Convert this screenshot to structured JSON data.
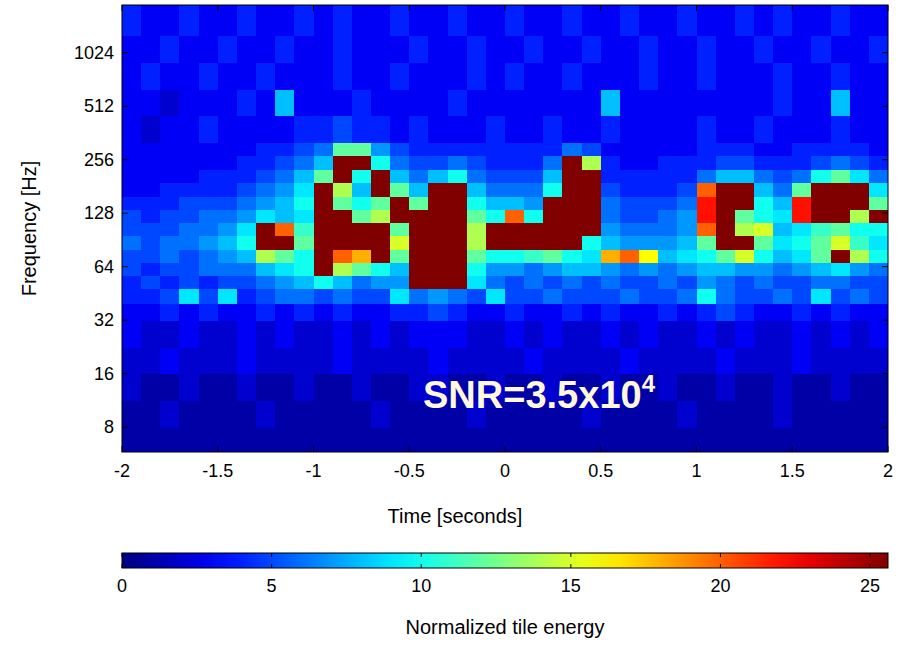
{
  "chart_data": {
    "type": "heatmap",
    "x_label": "Time [seconds]",
    "y_label": "Frequency [Hz]",
    "log": "y",
    "xlim": [
      -2,
      2
    ],
    "xticks": [
      -2,
      -1.5,
      -1,
      -0.5,
      0,
      0.5,
      1,
      1.5,
      2
    ],
    "ylim": [
      5.8,
      1900
    ],
    "yticks": [
      8,
      16,
      32,
      64,
      128,
      256,
      512,
      1024
    ],
    "annotations": [
      {
        "text": "SNR=3.5x10",
        "superscript": "4"
      }
    ],
    "colorbar": {
      "label": "Normalized tile energy",
      "range": [
        0,
        25.6
      ],
      "ticks": [
        0,
        5,
        10,
        15,
        20,
        25
      ]
    },
    "x_bins": [
      -2,
      -1.9,
      -1.8,
      -1.7,
      -1.6,
      -1.5,
      -1.4,
      -1.3,
      -1.2,
      -1.1,
      -1,
      -0.9,
      -0.8,
      -0.7,
      -0.6,
      -0.5,
      -0.4,
      -0.3,
      -0.2,
      -0.1,
      0,
      0.1,
      0.2,
      0.3,
      0.4,
      0.5,
      0.6,
      0.7,
      0.8,
      0.9,
      1,
      1.1,
      1.2,
      1.3,
      1.4,
      1.5,
      1.6,
      1.7,
      1.8,
      1.9,
      2
    ],
    "y_bins": [
      5.8,
      8,
      11.3,
      16,
      22.6,
      32,
      40,
      48,
      57,
      68,
      80,
      96,
      114,
      135,
      160,
      190,
      226,
      269,
      320,
      452,
      640,
      905,
      1280,
      1900
    ],
    "cells": [
      [
        1,
        1,
        1,
        1,
        1,
        1,
        1,
        1,
        1,
        1,
        1,
        1,
        1,
        1,
        1,
        1,
        1,
        1,
        1,
        1,
        1,
        1,
        1,
        1,
        1,
        1,
        1,
        1,
        1,
        1,
        1,
        1,
        1,
        1,
        1,
        1,
        1,
        1,
        1,
        1
      ],
      [
        1,
        1,
        2,
        1,
        1,
        1,
        1,
        2,
        1,
        1,
        1,
        1,
        1,
        2,
        1,
        1,
        1,
        1,
        2,
        1,
        1,
        1,
        1,
        1,
        2,
        1,
        1,
        1,
        1,
        2,
        1,
        1,
        1,
        1,
        2,
        1,
        1,
        1,
        1,
        1
      ],
      [
        2,
        1,
        1,
        2,
        1,
        1,
        2,
        1,
        1,
        2,
        1,
        1,
        2,
        1,
        1,
        2,
        2,
        1,
        1,
        2,
        1,
        1,
        2,
        1,
        1,
        2,
        1,
        1,
        2,
        1,
        1,
        2,
        1,
        1,
        2,
        1,
        1,
        2,
        1,
        1
      ],
      [
        2,
        2,
        3,
        2,
        2,
        2,
        3,
        2,
        2,
        2,
        2,
        3,
        2,
        2,
        2,
        2,
        3,
        2,
        2,
        2,
        2,
        3,
        2,
        2,
        2,
        2,
        3,
        2,
        2,
        2,
        2,
        3,
        2,
        2,
        2,
        3,
        2,
        2,
        2,
        2
      ],
      [
        3,
        2,
        2,
        3,
        2,
        2,
        3,
        2,
        3,
        2,
        2,
        3,
        2,
        3,
        2,
        3,
        3,
        3,
        2,
        2,
        3,
        2,
        3,
        2,
        2,
        3,
        2,
        3,
        2,
        2,
        3,
        2,
        3,
        2,
        2,
        3,
        2,
        3,
        2,
        3
      ],
      [
        3,
        3,
        4,
        3,
        4,
        3,
        3,
        4,
        3,
        4,
        3,
        4,
        3,
        3,
        4,
        4,
        5,
        4,
        3,
        3,
        4,
        3,
        3,
        4,
        3,
        4,
        3,
        3,
        4,
        3,
        4,
        5,
        4,
        3,
        3,
        4,
        3,
        4,
        3,
        3
      ],
      [
        4,
        4,
        5,
        9,
        5,
        9,
        4,
        5,
        6,
        6,
        5,
        6,
        5,
        5,
        9,
        6,
        7,
        6,
        5,
        9,
        5,
        5,
        6,
        5,
        5,
        5,
        6,
        5,
        5,
        6,
        10,
        6,
        5,
        5,
        6,
        5,
        9,
        5,
        6,
        5
      ],
      [
        4,
        5,
        4,
        5,
        4,
        5,
        5,
        6,
        7,
        8,
        10,
        8,
        6,
        7,
        7,
        28,
        30,
        30,
        9,
        6,
        5,
        6,
        5,
        6,
        5,
        6,
        5,
        5,
        6,
        5,
        7,
        6,
        5,
        6,
        5,
        5,
        6,
        6,
        5,
        5
      ],
      [
        5,
        4,
        5,
        5,
        6,
        6,
        6,
        8,
        9,
        10,
        28,
        14,
        12,
        10,
        8,
        30,
        30,
        30,
        10,
        7,
        7,
        6,
        7,
        8,
        8,
        7,
        6,
        7,
        6,
        7,
        8,
        8,
        7,
        7,
        6,
        7,
        8,
        9,
        7,
        6
      ],
      [
        5,
        5,
        6,
        5,
        6,
        7,
        8,
        14,
        12,
        10,
        28,
        20,
        18,
        28,
        12,
        30,
        30,
        30,
        12,
        10,
        10,
        11,
        12,
        10,
        9,
        18,
        20,
        16,
        8,
        9,
        10,
        12,
        15,
        10,
        8,
        9,
        12,
        26,
        14,
        10
      ],
      [
        6,
        5,
        6,
        6,
        7,
        8,
        10,
        28,
        26,
        12,
        30,
        28,
        28,
        28,
        15,
        30,
        30,
        30,
        14,
        28,
        28,
        28,
        28,
        28,
        10,
        8,
        7,
        7,
        7,
        8,
        12,
        28,
        28,
        12,
        9,
        10,
        12,
        15,
        11,
        9
      ],
      [
        5,
        5,
        5,
        6,
        6,
        7,
        9,
        26,
        20,
        11,
        30,
        26,
        28,
        28,
        12,
        30,
        30,
        30,
        14,
        28,
        26,
        28,
        28,
        30,
        28,
        7,
        6,
        6,
        6,
        7,
        20,
        28,
        14,
        15,
        8,
        9,
        11,
        12,
        10,
        10
      ],
      [
        5,
        4,
        5,
        5,
        6,
        6,
        7,
        9,
        8,
        9,
        30,
        28,
        12,
        14,
        28,
        28,
        30,
        30,
        12,
        10,
        20,
        10,
        28,
        30,
        28,
        6,
        5,
        5,
        6,
        7,
        22,
        28,
        12,
        10,
        9,
        22,
        28,
        28,
        14,
        28
      ],
      [
        4,
        4,
        4,
        5,
        5,
        5,
        6,
        7,
        8,
        10,
        28,
        12,
        10,
        12,
        28,
        12,
        30,
        30,
        10,
        8,
        8,
        7,
        28,
        30,
        30,
        6,
        5,
        5,
        5,
        6,
        22,
        28,
        28,
        10,
        8,
        22,
        28,
        28,
        28,
        12
      ],
      [
        3,
        3,
        4,
        4,
        4,
        4,
        5,
        6,
        7,
        9,
        28,
        14,
        8,
        28,
        12,
        8,
        28,
        28,
        8,
        6,
        6,
        6,
        10,
        30,
        30,
        5,
        4,
        4,
        4,
        5,
        20,
        28,
        28,
        8,
        6,
        12,
        28,
        28,
        26,
        9
      ],
      [
        3,
        3,
        3,
        3,
        4,
        4,
        4,
        5,
        6,
        8,
        12,
        28,
        10,
        28,
        8,
        6,
        8,
        10,
        6,
        5,
        5,
        5,
        8,
        30,
        28,
        4,
        4,
        4,
        4,
        4,
        6,
        8,
        8,
        6,
        5,
        6,
        10,
        12,
        9,
        6
      ],
      [
        3,
        3,
        3,
        3,
        3,
        3,
        4,
        4,
        5,
        6,
        8,
        28,
        28,
        10,
        6,
        5,
        5,
        6,
        5,
        4,
        4,
        4,
        6,
        28,
        14,
        4,
        3,
        3,
        4,
        4,
        4,
        5,
        5,
        4,
        4,
        4,
        5,
        6,
        5,
        4
      ],
      [
        3,
        3,
        3,
        3,
        3,
        3,
        3,
        4,
        4,
        5,
        6,
        12,
        12,
        7,
        5,
        4,
        4,
        4,
        4,
        4,
        4,
        4,
        4,
        6,
        5,
        3,
        3,
        3,
        3,
        3,
        4,
        4,
        4,
        3,
        3,
        4,
        4,
        4,
        4,
        3
      ],
      [
        3,
        2,
        3,
        3,
        4,
        3,
        3,
        3,
        3,
        4,
        4,
        5,
        4,
        4,
        3,
        4,
        3,
        3,
        3,
        4,
        3,
        3,
        4,
        3,
        3,
        4,
        3,
        3,
        3,
        3,
        4,
        3,
        3,
        4,
        3,
        3,
        3,
        4,
        3,
        3
      ],
      [
        3,
        3,
        2,
        3,
        3,
        3,
        4,
        3,
        8,
        3,
        3,
        3,
        4,
        3,
        3,
        3,
        3,
        4,
        3,
        3,
        3,
        3,
        3,
        3,
        3,
        8,
        3,
        3,
        3,
        3,
        3,
        3,
        3,
        3,
        4,
        3,
        3,
        8,
        3,
        3
      ],
      [
        3,
        4,
        3,
        3,
        4,
        3,
        3,
        4,
        3,
        3,
        3,
        4,
        3,
        3,
        4,
        3,
        3,
        3,
        4,
        3,
        4,
        3,
        3,
        4,
        3,
        3,
        3,
        4,
        3,
        3,
        4,
        3,
        3,
        3,
        4,
        3,
        3,
        4,
        3,
        3
      ],
      [
        3,
        3,
        4,
        3,
        3,
        4,
        3,
        3,
        4,
        3,
        3,
        4,
        3,
        3,
        3,
        4,
        3,
        3,
        4,
        3,
        3,
        4,
        3,
        3,
        4,
        3,
        3,
        4,
        3,
        3,
        4,
        3,
        3,
        4,
        3,
        3,
        4,
        3,
        3,
        4
      ],
      [
        4,
        3,
        3,
        4,
        3,
        3,
        4,
        3,
        3,
        4,
        3,
        4,
        3,
        3,
        4,
        3,
        3,
        4,
        3,
        3,
        4,
        3,
        3,
        4,
        3,
        3,
        4,
        3,
        3,
        4,
        3,
        3,
        4,
        3,
        4,
        3,
        3,
        4,
        3,
        3
      ]
    ]
  }
}
